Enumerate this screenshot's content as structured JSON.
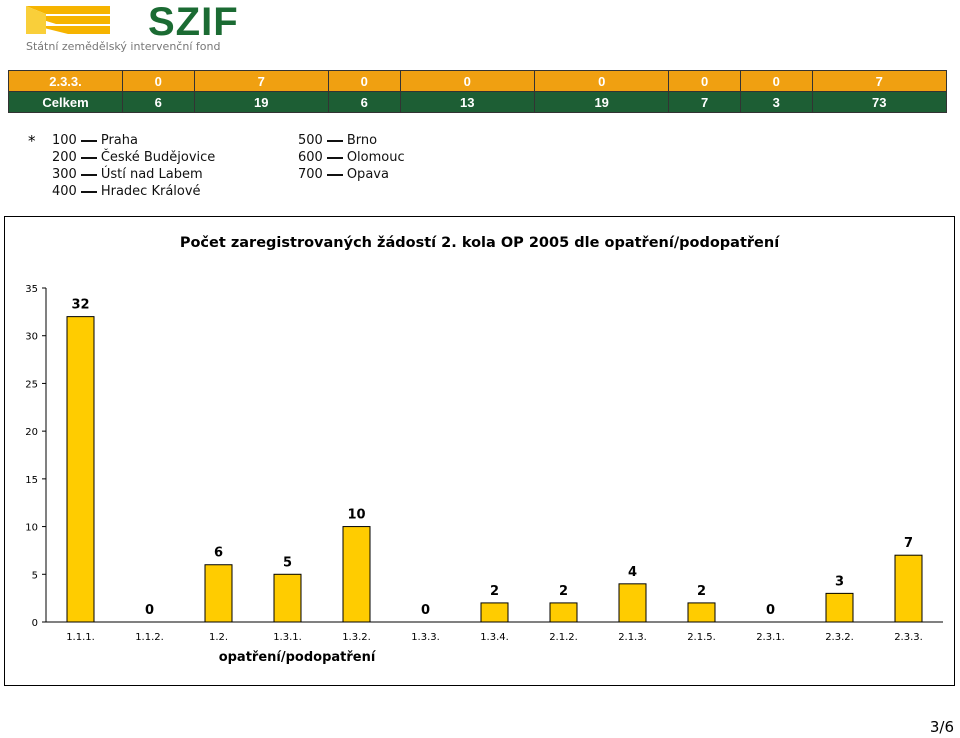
{
  "header": {
    "logo_text": "SZIF",
    "logo_subtitle": "Státní zemědělský intervenční fond"
  },
  "summary_table": {
    "rows": [
      {
        "label": "2.3.3.",
        "values": [
          "0",
          "7",
          "0",
          "0",
          "0",
          "0",
          "0",
          "7"
        ]
      },
      {
        "label": "Celkem",
        "values": [
          "6",
          "19",
          "6",
          "13",
          "19",
          "7",
          "3",
          "73"
        ]
      }
    ]
  },
  "legend": {
    "star": "*",
    "col1": [
      {
        "code": "100",
        "name": "Praha"
      },
      {
        "code": "200",
        "name": "České Budějovice"
      },
      {
        "code": "300",
        "name": "Ústí nad Labem"
      },
      {
        "code": "400",
        "name": "Hradec Králové"
      }
    ],
    "col2": [
      {
        "code": "500",
        "name": "Brno"
      },
      {
        "code": "600",
        "name": "Olomouc"
      },
      {
        "code": "700",
        "name": "Opava"
      }
    ]
  },
  "chart_data": {
    "type": "bar",
    "title": "Počet zaregistrovaných žádostí 2. kola OP 2005 dle opatření/podopatření",
    "xlabel": "opatření/podopatření",
    "ylabel": "",
    "categories": [
      "1.1.1.",
      "1.1.2.",
      "1.2.",
      "1.3.1.",
      "1.3.2.",
      "1.3.3.",
      "1.3.4.",
      "2.1.2.",
      "2.1.3.",
      "2.1.5.",
      "2.3.1.",
      "2.3.2.",
      "2.3.3."
    ],
    "values": [
      32,
      0,
      6,
      5,
      10,
      0,
      2,
      2,
      4,
      2,
      0,
      3,
      7
    ],
    "ylim": [
      0,
      35
    ],
    "yticks": [
      0,
      5,
      10,
      15,
      20,
      25,
      30,
      35
    ],
    "grid": false,
    "legend": "none",
    "bar_color": "#ffcc00"
  },
  "footer": {
    "page": "3/6"
  }
}
